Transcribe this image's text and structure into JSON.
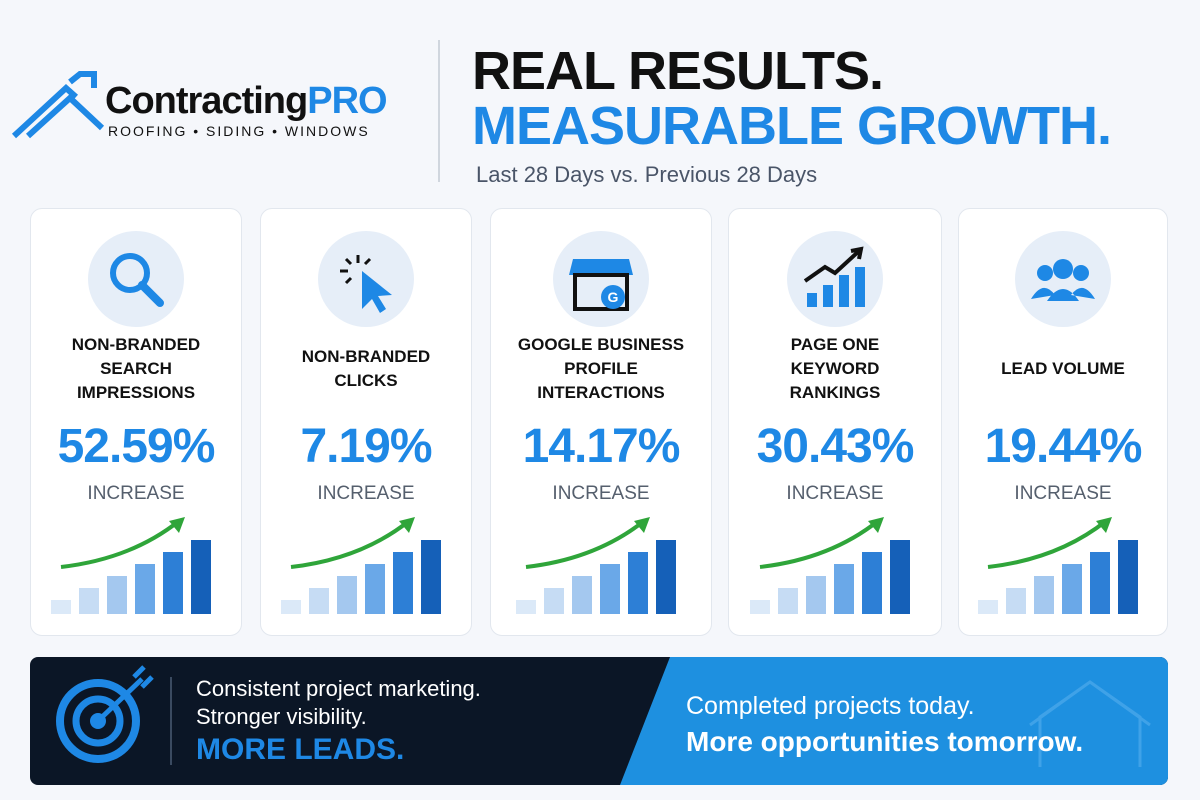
{
  "header": {
    "brand": "Contracting",
    "brand_accent": "PRO",
    "brand_tagline": "ROOFING • SIDING • WINDOWS",
    "title_line1": "REAL RESULTS.",
    "title_line2": "MEASURABLE GROWTH.",
    "subtitle": "Last 28 Days vs. Previous 28 Days"
  },
  "cards": [
    {
      "label_lines": [
        "NON-BRANDED",
        "SEARCH",
        "IMPRESSIONS"
      ],
      "value": "52.59%",
      "caption": "INCREASE"
    },
    {
      "label_lines": [
        "NON-BRANDED",
        "CLICKS"
      ],
      "value": "7.19%",
      "caption": "INCREASE"
    },
    {
      "label_lines": [
        "GOOGLE BUSINESS",
        "PROFILE",
        "INTERACTIONS"
      ],
      "value": "14.17%",
      "caption": "INCREASE"
    },
    {
      "label_lines": [
        "PAGE ONE",
        "KEYWORD",
        "RANKINGS"
      ],
      "value": "30.43%",
      "caption": "INCREASE"
    },
    {
      "label_lines": [
        "LEAD VOLUME"
      ],
      "value": "19.44%",
      "caption": "INCREASE"
    }
  ],
  "banner": {
    "left_line1": "Consistent project marketing.",
    "left_line2": "Stronger visibility.",
    "left_highlight": "MORE LEADS.",
    "right_line1": "Completed projects today.",
    "right_line2": "More opportunities tomorrow."
  }
}
